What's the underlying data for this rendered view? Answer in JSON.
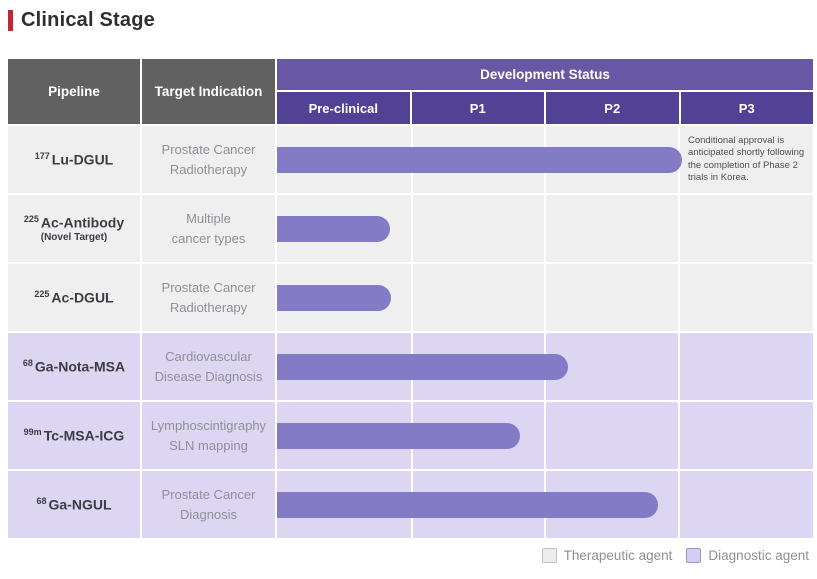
{
  "page": {
    "title": "Clinical Stage"
  },
  "table": {
    "headers": {
      "pipeline": "Pipeline",
      "indication": "Target Indication",
      "dev_status": "Development Status",
      "stages": [
        "Pre-clinical",
        "P1",
        "P2",
        "P3"
      ]
    }
  },
  "chart_data": {
    "type": "bar",
    "title": "Clinical Stage",
    "stages": [
      "Pre-clinical",
      "P1",
      "P2",
      "P3"
    ],
    "stage_width_pct": 25,
    "rows": [
      {
        "pipeline_isotope": "177",
        "pipeline_name": "Lu-DGUL",
        "indication_line1": "Prostate Cancer",
        "indication_line2": "Radiotherapy",
        "category": "therapeutic",
        "stage_reached": "end of P2",
        "bar_end_pct": 75.5,
        "note": "Conditional approval is anticipated shortly following the completion of Phase 2 trials in Korea."
      },
      {
        "pipeline_isotope": "225",
        "pipeline_name": "Ac-Antibody",
        "pipeline_sub": "(Novel Target)",
        "indication_line1": "Multiple",
        "indication_line2": "cancer types",
        "category": "therapeutic",
        "stage_reached": "late Pre-clinical",
        "bar_end_pct": 21
      },
      {
        "pipeline_isotope": "225",
        "pipeline_name": "Ac-DGUL",
        "indication_line1": "Prostate Cancer",
        "indication_line2": "Radiotherapy",
        "category": "therapeutic",
        "stage_reached": "late Pre-clinical",
        "bar_end_pct": 21.3
      },
      {
        "pipeline_isotope": "68",
        "pipeline_name": "Ga-Nota-MSA",
        "indication_line1": "Cardiovascular",
        "indication_line2": "Disease Diagnosis",
        "category": "diagnostic",
        "stage_reached": "early P2",
        "bar_end_pct": 54.3
      },
      {
        "pipeline_isotope": "99m",
        "pipeline_name": "Tc-MSA-ICG",
        "indication_line1": "Lymphoscintigraphy",
        "indication_line2": "SLN mapping",
        "category": "diagnostic",
        "stage_reached": "late P1",
        "bar_end_pct": 45.3
      },
      {
        "pipeline_isotope": "68",
        "pipeline_name": "Ga-NGUL",
        "indication_line1": "Prostate Cancer",
        "indication_line2": "Diagnosis",
        "category": "diagnostic",
        "stage_reached": "late P2",
        "bar_end_pct": 71
      }
    ]
  },
  "legend": [
    {
      "label": "Therapeutic agent",
      "swatch": "gray"
    },
    {
      "label": "Diagnostic agent",
      "swatch": "purple"
    }
  ],
  "colors": {
    "accent-red": "#c4262e",
    "header-gray": "#616161",
    "dev-purple": "#6757a5",
    "stage-purple": "#514295",
    "bar-purple": "#837bc5",
    "row-gray": "#efeff0",
    "row-purple": "#dcd6f2",
    "legend-gray-fill": "#ececec",
    "legend-gray-border": "#c2c2c2",
    "legend-purple-fill": "#d6cef0",
    "legend-purple-border": "#9c92cf"
  }
}
